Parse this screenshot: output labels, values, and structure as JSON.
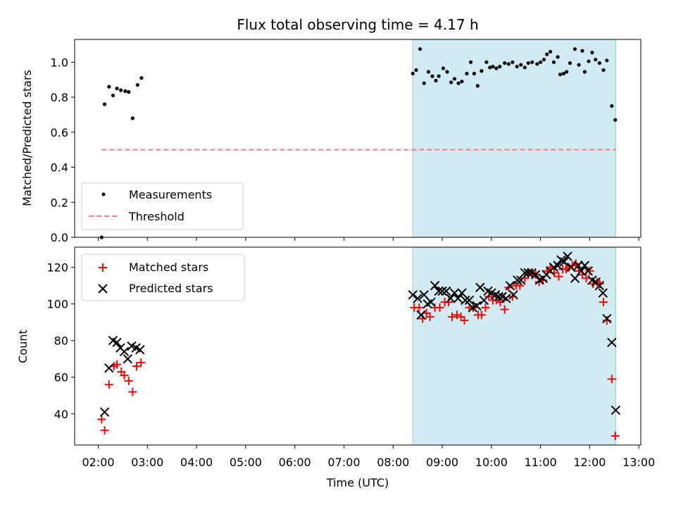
{
  "chart_data": {
    "type": "scatter",
    "title": "Flux total observing time = 4.17 h",
    "xlabel": "Time (UTC)",
    "x_ticks": [
      "02:00",
      "03:00",
      "04:00",
      "05:00",
      "06:00",
      "07:00",
      "08:00",
      "09:00",
      "10:00",
      "11:00",
      "12:00",
      "13:00"
    ],
    "x_range_hours": [
      1.52,
      13.04
    ],
    "shaded_interval_hours": [
      8.4,
      12.53
    ],
    "panels": [
      {
        "ylabel": "Matched/Predicted stars",
        "ylim": [
          0,
          1.13
        ],
        "yticks": [
          "0.0",
          "0.2",
          "0.4",
          "0.6",
          "0.8",
          "1.0"
        ],
        "threshold": {
          "name": "Threshold",
          "value": 0.5,
          "x_start": 2.07,
          "x_end": 12.53,
          "color": "#f08080"
        },
        "series": [
          {
            "name": "Measurements",
            "marker": "dot",
            "color": "#000000",
            "points": [
              [
                2.07,
                0.0
              ],
              [
                2.13,
                0.76
              ],
              [
                2.22,
                0.86
              ],
              [
                2.3,
                0.81
              ],
              [
                2.38,
                0.85
              ],
              [
                2.46,
                0.84
              ],
              [
                2.55,
                0.835
              ],
              [
                2.62,
                0.83
              ],
              [
                2.7,
                0.68
              ],
              [
                2.8,
                0.87
              ],
              [
                2.88,
                0.91
              ],
              [
                8.4,
                0.935
              ],
              [
                8.47,
                0.955
              ],
              [
                8.55,
                1.075
              ],
              [
                8.63,
                0.88
              ],
              [
                8.72,
                0.945
              ],
              [
                8.8,
                0.92
              ],
              [
                8.87,
                0.895
              ],
              [
                8.93,
                0.92
              ],
              [
                9.02,
                0.965
              ],
              [
                9.1,
                0.945
              ],
              [
                9.18,
                0.885
              ],
              [
                9.25,
                0.905
              ],
              [
                9.33,
                0.88
              ],
              [
                9.4,
                0.89
              ],
              [
                9.5,
                0.935
              ],
              [
                9.58,
                1.0
              ],
              [
                9.65,
                0.935
              ],
              [
                9.72,
                0.865
              ],
              [
                9.8,
                0.95
              ],
              [
                9.9,
                1.0
              ],
              [
                9.97,
                0.97
              ],
              [
                10.03,
                0.975
              ],
              [
                10.1,
                0.965
              ],
              [
                10.17,
                0.975
              ],
              [
                10.27,
                0.995
              ],
              [
                10.35,
                0.99
              ],
              [
                10.43,
                1.0
              ],
              [
                10.52,
                0.975
              ],
              [
                10.6,
                0.985
              ],
              [
                10.68,
                0.97
              ],
              [
                10.75,
                0.995
              ],
              [
                10.83,
                1.0
              ],
              [
                10.93,
                0.99
              ],
              [
                11.0,
                1.0
              ],
              [
                11.07,
                1.015
              ],
              [
                11.13,
                1.045
              ],
              [
                11.2,
                1.06
              ],
              [
                11.27,
                1.0
              ],
              [
                11.35,
                1.03
              ],
              [
                11.4,
                0.93
              ],
              [
                11.47,
                0.935
              ],
              [
                11.53,
                0.945
              ],
              [
                11.6,
                0.995
              ],
              [
                11.7,
                1.075
              ],
              [
                11.78,
                0.985
              ],
              [
                11.85,
                1.065
              ],
              [
                11.9,
                0.945
              ],
              [
                11.98,
                1.005
              ],
              [
                12.05,
                1.055
              ],
              [
                12.12,
                1.015
              ],
              [
                12.2,
                0.995
              ],
              [
                12.28,
                0.955
              ],
              [
                12.35,
                1.01
              ],
              [
                12.45,
                0.75
              ],
              [
                12.52,
                0.67
              ]
            ]
          }
        ]
      },
      {
        "ylabel": "Count",
        "ylim": [
          23,
          131
        ],
        "yticks": [
          "40",
          "60",
          "80",
          "100",
          "120"
        ],
        "series": [
          {
            "name": "Matched stars",
            "marker": "plus",
            "color": "#ff0000",
            "points": [
              [
                2.07,
                37
              ],
              [
                2.13,
                31
              ],
              [
                2.22,
                56
              ],
              [
                2.32,
                66
              ],
              [
                2.38,
                67
              ],
              [
                2.47,
                63
              ],
              [
                2.53,
                61
              ],
              [
                2.62,
                58
              ],
              [
                2.7,
                52
              ],
              [
                2.78,
                66
              ],
              [
                2.87,
                68
              ],
              [
                8.43,
                98
              ],
              [
                8.53,
                98
              ],
              [
                8.6,
                92
              ],
              [
                8.68,
                95
              ],
              [
                8.75,
                93
              ],
              [
                8.85,
                98
              ],
              [
                8.95,
                98
              ],
              [
                9.05,
                101
              ],
              [
                9.13,
                101
              ],
              [
                9.2,
                93
              ],
              [
                9.3,
                94
              ],
              [
                9.38,
                93
              ],
              [
                9.45,
                91
              ],
              [
                9.55,
                98
              ],
              [
                9.63,
                98
              ],
              [
                9.73,
                94
              ],
              [
                9.8,
                94
              ],
              [
                9.88,
                98
              ],
              [
                9.95,
                104
              ],
              [
                10.03,
                102
              ],
              [
                10.1,
                102
              ],
              [
                10.18,
                101
              ],
              [
                10.27,
                97
              ],
              [
                10.35,
                109
              ],
              [
                10.43,
                104
              ],
              [
                10.5,
                110
              ],
              [
                10.58,
                110
              ],
              [
                10.68,
                114
              ],
              [
                10.75,
                117
              ],
              [
                10.83,
                117
              ],
              [
                10.9,
                116
              ],
              [
                10.97,
                112
              ],
              [
                11.05,
                113
              ],
              [
                11.13,
                118
              ],
              [
                11.2,
                120
              ],
              [
                11.28,
                117
              ],
              [
                11.37,
                115
              ],
              [
                11.45,
                119
              ],
              [
                11.52,
                119
              ],
              [
                11.58,
                120
              ],
              [
                11.65,
                121
              ],
              [
                11.72,
                122
              ],
              [
                11.78,
                118
              ],
              [
                11.85,
                116
              ],
              [
                11.93,
                114
              ],
              [
                12.0,
                118
              ],
              [
                12.07,
                111
              ],
              [
                12.15,
                112
              ],
              [
                12.2,
                111
              ],
              [
                12.28,
                101
              ],
              [
                12.35,
                91
              ],
              [
                12.45,
                59
              ],
              [
                12.52,
                28
              ]
            ]
          },
          {
            "name": "Predicted stars",
            "marker": "x",
            "color": "#000000",
            "points": [
              [
                2.13,
                41
              ],
              [
                2.22,
                65
              ],
              [
                2.3,
                80
              ],
              [
                2.38,
                79
              ],
              [
                2.45,
                76
              ],
              [
                2.53,
                74
              ],
              [
                2.6,
                70
              ],
              [
                2.68,
                77
              ],
              [
                2.77,
                76
              ],
              [
                2.85,
                75
              ],
              [
                8.4,
                105
              ],
              [
                8.5,
                103
              ],
              [
                8.57,
                94
              ],
              [
                8.63,
                105
              ],
              [
                8.7,
                100
              ],
              [
                8.77,
                101
              ],
              [
                8.85,
                110
              ],
              [
                8.93,
                107
              ],
              [
                9.0,
                107
              ],
              [
                9.08,
                107
              ],
              [
                9.17,
                103
              ],
              [
                9.25,
                106
              ],
              [
                9.32,
                103
              ],
              [
                9.4,
                106
              ],
              [
                9.47,
                102
              ],
              [
                9.55,
                102
              ],
              [
                9.62,
                98
              ],
              [
                9.7,
                99
              ],
              [
                9.77,
                109
              ],
              [
                9.85,
                102
              ],
              [
                9.93,
                107
              ],
              [
                10.0,
                106
              ],
              [
                10.08,
                105
              ],
              [
                10.15,
                104
              ],
              [
                10.22,
                104
              ],
              [
                10.3,
                103
              ],
              [
                10.38,
                110
              ],
              [
                10.45,
                105
              ],
              [
                10.53,
                113
              ],
              [
                10.6,
                113
              ],
              [
                10.68,
                117
              ],
              [
                10.75,
                117
              ],
              [
                10.82,
                117
              ],
              [
                10.9,
                116
              ],
              [
                10.98,
                113
              ],
              [
                11.05,
                114
              ],
              [
                11.12,
                116
              ],
              [
                11.2,
                118
              ],
              [
                11.27,
                120
              ],
              [
                11.35,
                121
              ],
              [
                11.42,
                124
              ],
              [
                11.48,
                123
              ],
              [
                11.55,
                126
              ],
              [
                11.62,
                120
              ],
              [
                11.7,
                114
              ],
              [
                11.77,
                121
              ],
              [
                11.83,
                118
              ],
              [
                11.9,
                121
              ],
              [
                11.97,
                118
              ],
              [
                12.05,
                113
              ],
              [
                12.13,
                112
              ],
              [
                12.2,
                110
              ],
              [
                12.27,
                106
              ],
              [
                12.35,
                92
              ],
              [
                12.45,
                79
              ],
              [
                12.53,
                42
              ]
            ]
          }
        ]
      }
    ]
  }
}
